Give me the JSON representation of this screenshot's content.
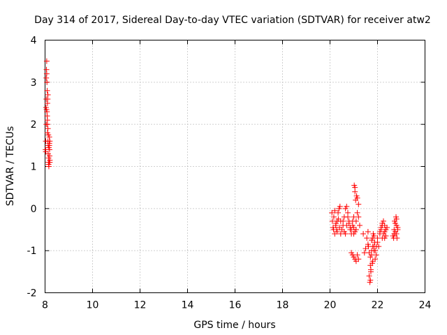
{
  "chart_data": {
    "type": "scatter",
    "title": "Day 314 of 2017, Sidereal Day-to-day VTEC variation (SDTVAR) for receiver atw2",
    "xlabel": "GPS time / hours",
    "ylabel": "SDTVAR / TECUs",
    "xlim": [
      8,
      24
    ],
    "ylim": [
      -2,
      4
    ],
    "xticks": [
      "8",
      "10",
      "12",
      "14",
      "16",
      "18",
      "20",
      "22",
      "24"
    ],
    "yticks": [
      "-2",
      "-1",
      "0",
      "1",
      "2",
      "3",
      "4"
    ],
    "grid": true,
    "marker": "plus",
    "color": "#ff0000",
    "series": [
      {
        "x": [
          8.02,
          8.03,
          8.04,
          8.05,
          8.05,
          8.06,
          8.07,
          8.08,
          8.08,
          8.09,
          8.1,
          8.1,
          8.11,
          8.12,
          8.12,
          8.13,
          8.14,
          8.15,
          8.16,
          8.17,
          8.18,
          8.18,
          8.19,
          8.2,
          8.2,
          8.03,
          8.05,
          8.07,
          8.09,
          8.1,
          8.12,
          8.13,
          8.15,
          8.16,
          8.18,
          8.19,
          8.06,
          8.1,
          8.14,
          8.2,
          20.08,
          20.1,
          20.13,
          20.16,
          20.2,
          20.24,
          20.28,
          20.3,
          20.34,
          20.38,
          20.42,
          20.45,
          20.5,
          20.55,
          20.6,
          20.65,
          20.7,
          20.75,
          20.8,
          20.85,
          20.9,
          20.95,
          21.0,
          21.02,
          21.05,
          21.08,
          21.12,
          21.15,
          21.2,
          21.05,
          20.15,
          20.2,
          20.25,
          20.3,
          20.35,
          20.4,
          20.45,
          20.5,
          20.55,
          20.6,
          20.65,
          20.7,
          20.75,
          20.8,
          20.85,
          20.9,
          20.95,
          21.0,
          21.05,
          21.1,
          21.15,
          21.2,
          21.25,
          21.1,
          21.0,
          20.9,
          20.95,
          21.0,
          21.05,
          21.1,
          21.15,
          21.2,
          21.4,
          21.45,
          21.5,
          21.55,
          21.6,
          21.62,
          21.65,
          21.68,
          21.7,
          21.72,
          21.75,
          21.78,
          21.8,
          21.82,
          21.85,
          21.88,
          21.9,
          21.95,
          22.0,
          22.05,
          22.1,
          22.15,
          22.2,
          22.25,
          22.3,
          22.35,
          21.6,
          21.65,
          21.7,
          21.75,
          21.8,
          21.85,
          21.9,
          21.95,
          22.0,
          21.7,
          21.72,
          21.75,
          21.8,
          21.85,
          22.1,
          22.15,
          22.2,
          22.25,
          22.3,
          22.35,
          22.4,
          22.2,
          22.25,
          22.3,
          22.35,
          22.65,
          22.7,
          22.72,
          22.75,
          22.78,
          22.8,
          22.82,
          22.85,
          22.7,
          22.75,
          22.8,
          22.85,
          22.68,
          22.75,
          22.8
        ],
        "y": [
          1.4,
          1.6,
          2.4,
          2.6,
          3.1,
          3.3,
          3.5,
          3.0,
          2.3,
          2.2,
          2.0,
          1.8,
          2.6,
          2.7,
          1.6,
          1.5,
          1.1,
          1.05,
          1.0,
          1.1,
          1.5,
          1.7,
          1.4,
          1.6,
          1.15,
          1.35,
          2.0,
          3.2,
          2.8,
          2.5,
          1.9,
          1.3,
          1.2,
          1.45,
          1.55,
          1.25,
          2.35,
          2.1,
          1.75,
          1.1,
          -0.1,
          -0.3,
          -0.45,
          -0.2,
          -0.05,
          -0.4,
          -0.5,
          -0.3,
          -0.1,
          0.0,
          0.05,
          -0.3,
          -0.5,
          -0.4,
          -0.2,
          0.0,
          0.05,
          -0.1,
          -0.3,
          -0.45,
          -0.5,
          -0.4,
          -0.2,
          0.55,
          0.4,
          0.2,
          0.3,
          0.25,
          0.1,
          0.5,
          -0.5,
          -0.6,
          -0.35,
          -0.55,
          -0.25,
          -0.45,
          -0.6,
          -0.5,
          -0.3,
          -0.55,
          -0.6,
          -0.4,
          -0.2,
          -0.35,
          -0.5,
          -0.6,
          -0.3,
          -0.45,
          -0.55,
          -0.3,
          -0.1,
          -0.2,
          -0.4,
          -0.5,
          -0.6,
          -1.05,
          -1.1,
          -1.15,
          -1.2,
          -1.25,
          -1.1,
          -1.2,
          -0.6,
          -1.05,
          -0.95,
          -0.7,
          -0.55,
          -0.9,
          -1.6,
          -1.75,
          -1.7,
          -1.5,
          -1.1,
          -1.3,
          -0.9,
          -0.6,
          -1.0,
          -0.8,
          -1.2,
          -0.9,
          -0.7,
          -0.9,
          -0.6,
          -0.5,
          -0.4,
          -0.6,
          -0.7,
          -0.5,
          -0.85,
          -1.05,
          -1.15,
          -0.75,
          -1.25,
          -0.65,
          -1.0,
          -1.1,
          -0.8,
          -1.35,
          -1.45,
          -1.0,
          -0.7,
          -0.9,
          -0.55,
          -0.45,
          -0.35,
          -0.3,
          -0.55,
          -0.65,
          -0.45,
          -0.7,
          -0.6,
          -0.4,
          -0.5,
          -0.65,
          -0.5,
          -0.3,
          -0.6,
          -0.2,
          -0.4,
          -0.7,
          -0.5,
          -0.6,
          -0.55,
          -0.25,
          -0.45,
          -0.7,
          -0.35,
          -0.6
        ]
      }
    ]
  }
}
